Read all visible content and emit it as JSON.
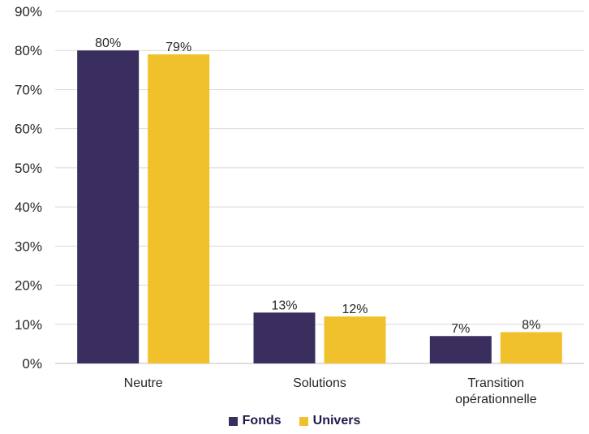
{
  "chart_data": {
    "type": "bar",
    "categories": [
      [
        "Neutre"
      ],
      [
        "Solutions"
      ],
      [
        "Transition",
        "opérationnelle"
      ]
    ],
    "series": [
      {
        "name": "Fonds",
        "values": [
          80,
          13,
          7
        ],
        "labels": [
          "80%",
          "13%",
          "7%"
        ],
        "color": "#3a2e5f"
      },
      {
        "name": "Univers",
        "values": [
          79,
          12,
          8
        ],
        "labels": [
          "79%",
          "12%",
          "8%"
        ],
        "color": "#f0c12a"
      }
    ],
    "ylim": [
      0,
      90
    ],
    "yticks": [
      "0%",
      "10%",
      "20%",
      "30%",
      "40%",
      "50%",
      "60%",
      "70%",
      "80%",
      "90%"
    ],
    "grid": true,
    "legend_position": "bottom"
  },
  "legend": {
    "fonds_label": "Fonds",
    "univers_label": "Univers"
  }
}
